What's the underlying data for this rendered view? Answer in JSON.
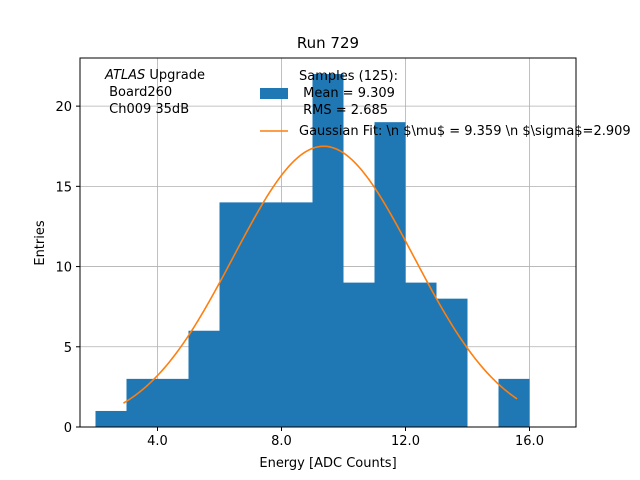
{
  "chart_data": {
    "type": "bar",
    "title": "Run 729",
    "xlabel": "Energy [ADC Counts]",
    "ylabel": "Entries",
    "xlim": [
      1.5,
      17.5
    ],
    "ylim": [
      0,
      23
    ],
    "grid": true,
    "x_ticks": [
      4.0,
      8.0,
      12.0,
      16.0
    ],
    "x_tick_labels": [
      "4.0",
      "8.0",
      "12.0",
      "16.0"
    ],
    "y_ticks": [
      0,
      5,
      10,
      15,
      20
    ],
    "y_tick_labels": [
      "0",
      "5",
      "10",
      "15",
      "20"
    ],
    "bin_width": 1,
    "bin_edges_start": [
      2,
      3,
      4,
      5,
      6,
      7,
      8,
      9,
      10,
      11,
      12,
      13,
      14,
      15
    ],
    "values": [
      1,
      3,
      3,
      6,
      14,
      14,
      14,
      22,
      9,
      19,
      9,
      8,
      0,
      3
    ],
    "histogram_color": "#1f77b4",
    "fit": {
      "name": "Gaussian Fit",
      "mu": 9.359,
      "sigma": 2.909,
      "amplitude": 17.5,
      "x_range": [
        2.9,
        15.6
      ],
      "color": "#ff7f0e"
    },
    "legend": {
      "placement": "top-center",
      "hist_lines": [
        "Samples (125):",
        " Mean = 9.309",
        " RMS = 2.685"
      ],
      "fit_label": "Gaussian Fit: \\n $\\mu$ = 9.359 \\n $\\sigma$=2.909"
    },
    "annotation": {
      "placement": "top-left",
      "experiment": "ATLAS",
      "experiment_suffix": " Upgrade",
      "lines": [
        " Board260",
        " Ch009 35dB"
      ]
    }
  }
}
